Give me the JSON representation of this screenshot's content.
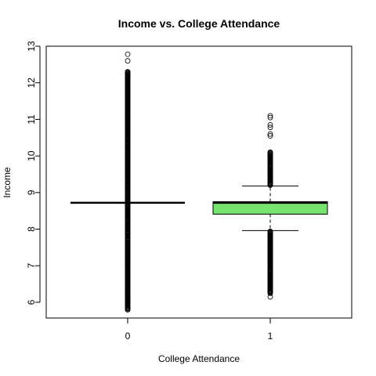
{
  "chart_data": {
    "type": "boxplot",
    "title": "Income vs. College Attendance",
    "xlabel": "College Attendance",
    "ylabel": "Income",
    "ylim": [
      5.57,
      13.0
    ],
    "yticks": [
      "6",
      "7",
      "8",
      "9",
      "10",
      "11",
      "12",
      "13"
    ],
    "categories": [
      "0",
      "1"
    ],
    "grid": false,
    "legend": "none",
    "series": [
      {
        "category": "0",
        "fill": "#ffffff",
        "q1": 8.72,
        "median": 8.72,
        "q3": 8.72,
        "whisker_low": 8.72,
        "whisker_high": 8.72,
        "outlier_range_low": [
          5.8,
          8.7
        ],
        "outlier_range_high": [
          8.74,
          12.3
        ],
        "outliers_extreme": [
          12.78,
          12.6,
          12.3,
          12.25,
          12.15,
          12.05,
          6.1,
          6.05,
          5.98,
          5.8
        ]
      },
      {
        "category": "1",
        "fill": "#77e46f",
        "q1": 8.41,
        "median": 8.72,
        "q3": 8.75,
        "whisker_low": 7.96,
        "whisker_high": 9.18,
        "outlier_range_low": [
          6.25,
          7.94
        ],
        "outlier_range_high": [
          9.2,
          10.1
        ],
        "outliers_extreme": [
          11.1,
          11.05,
          10.85,
          10.78,
          10.6,
          10.55,
          10.1,
          6.28,
          6.15
        ]
      }
    ]
  }
}
